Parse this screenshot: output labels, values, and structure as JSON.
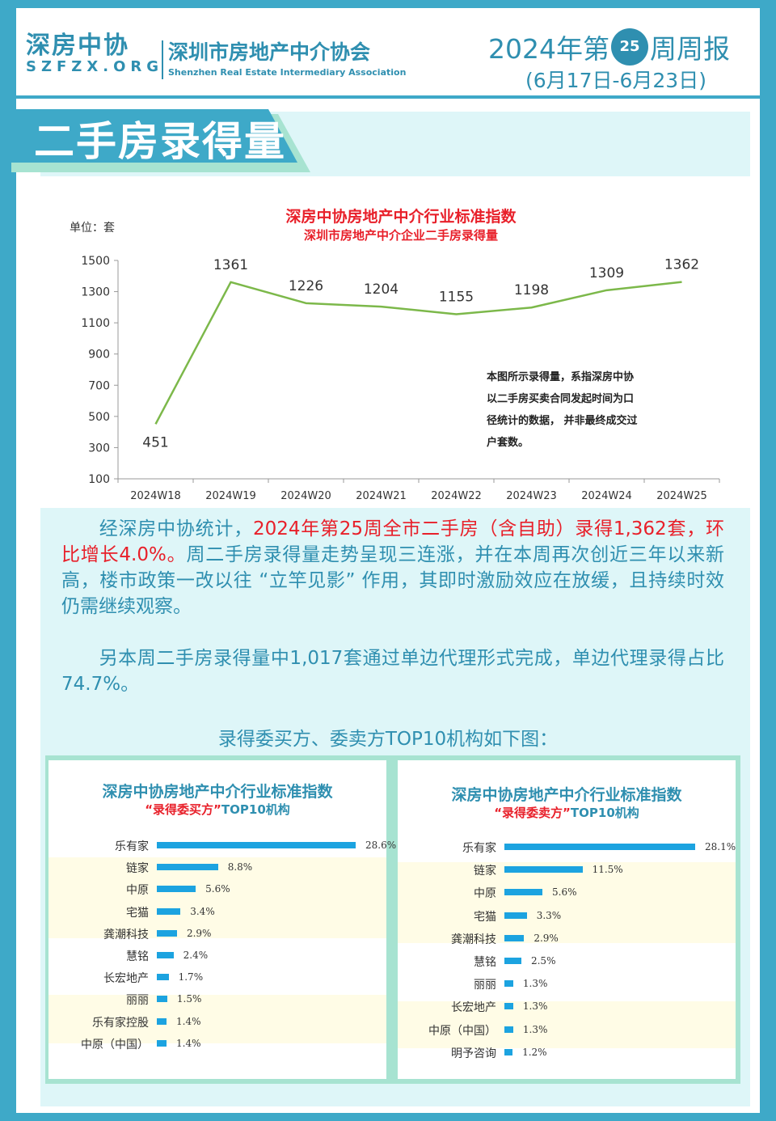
{
  "header": {
    "logo_cn": "深房中协",
    "logo_en": "SZFZX.ORG",
    "org_cn": "深圳市房地产中介协会",
    "org_en": "Shenzhen Real Estate Intermediary Association",
    "report_prefix": "2024年第",
    "report_week": "25",
    "report_suffix": "周周报",
    "date_range": "(6月17日-6月23日)"
  },
  "section": {
    "title": "二手房录得量"
  },
  "chart_data": {
    "type": "line",
    "title": "深房中协房地产中介行业标准指数",
    "subtitle": "深圳市房地产中介企业二手房录得量",
    "unit_label": "单位：套",
    "categories": [
      "2024W18",
      "2024W19",
      "2024W20",
      "2024W21",
      "2024W22",
      "2024W23",
      "2024W24",
      "2024W25"
    ],
    "values": [
      451,
      1361,
      1226,
      1204,
      1155,
      1198,
      1309,
      1362
    ],
    "y_ticks": [
      1500,
      1300,
      1100,
      900,
      700,
      500,
      300,
      100
    ],
    "ylim": [
      100,
      1500
    ],
    "line_color": "#7cb84a",
    "note_lines": [
      "本图所示录得量，系指深房中协",
      "以二手房买卖合同发起时间为口",
      "径统计的数据，  并非最终成交过",
      "户套数。"
    ]
  },
  "paragraphs": {
    "p1_a": "经深房中协统计，",
    "p1_red": "2024年第25周全市二手房（含自助）录得1,362套，环比增长4.0%。",
    "p1_b": "周二手房录得量走势呈现三连涨，并在本周再次创近三年以来新高，楼市政策一改以往 “立竿见影” 作用，其即时激励效应在放缓，且持续时效仍需继续观察。",
    "p2": "另本周二手房录得量中1,017套通过单边代理形式完成，单边代理录得占比74.7%。",
    "subhead": "录得委买方、委卖方TOP10机构如下图："
  },
  "top10_buyer": {
    "title": "深房中协房地产中介行业标准指数",
    "sub_red": "“录得委买方”",
    "sub_rest": "TOP10机构",
    "items": [
      {
        "name": "乐有家",
        "value": 28.6,
        "label": "28.6%"
      },
      {
        "name": "链家",
        "value": 8.8,
        "label": "8.8%"
      },
      {
        "name": "中原",
        "value": 5.6,
        "label": "5.6%"
      },
      {
        "name": "宅猫",
        "value": 3.4,
        "label": "3.4%"
      },
      {
        "name": "龚潮科技",
        "value": 2.9,
        "label": "2.9%"
      },
      {
        "name": "慧铭",
        "value": 2.4,
        "label": "2.4%"
      },
      {
        "name": "长宏地产",
        "value": 1.7,
        "label": "1.7%"
      },
      {
        "name": "丽丽",
        "value": 1.5,
        "label": "1.5%"
      },
      {
        "name": "乐有家控股",
        "value": 1.4,
        "label": "1.4%"
      },
      {
        "name": "中原（中国）",
        "value": 1.4,
        "label": "1.4%"
      }
    ]
  },
  "top10_seller": {
    "title": "深房中协房地产中介行业标准指数",
    "sub_red": "“录得委卖方”",
    "sub_rest": "TOP10机构",
    "items": [
      {
        "name": "乐有家",
        "value": 28.1,
        "label": "28.1%"
      },
      {
        "name": "链家",
        "value": 11.5,
        "label": "11.5%"
      },
      {
        "name": "中原",
        "value": 5.6,
        "label": "5.6%"
      },
      {
        "name": "宅猫",
        "value": 3.3,
        "label": "3.3%"
      },
      {
        "name": "龚潮科技",
        "value": 2.9,
        "label": "2.9%"
      },
      {
        "name": "慧铭",
        "value": 2.5,
        "label": "2.5%"
      },
      {
        "name": "丽丽",
        "value": 1.3,
        "label": "1.3%"
      },
      {
        "name": "长宏地产",
        "value": 1.3,
        "label": "1.3%"
      },
      {
        "name": "中原（中国）",
        "value": 1.3,
        "label": "1.3%"
      },
      {
        "name": "明予咨询",
        "value": 1.2,
        "label": "1.2%"
      }
    ]
  },
  "colors": {
    "brand": "#2f8fb0",
    "accent_red": "#e8202a",
    "bar": "#1ca3e0"
  }
}
